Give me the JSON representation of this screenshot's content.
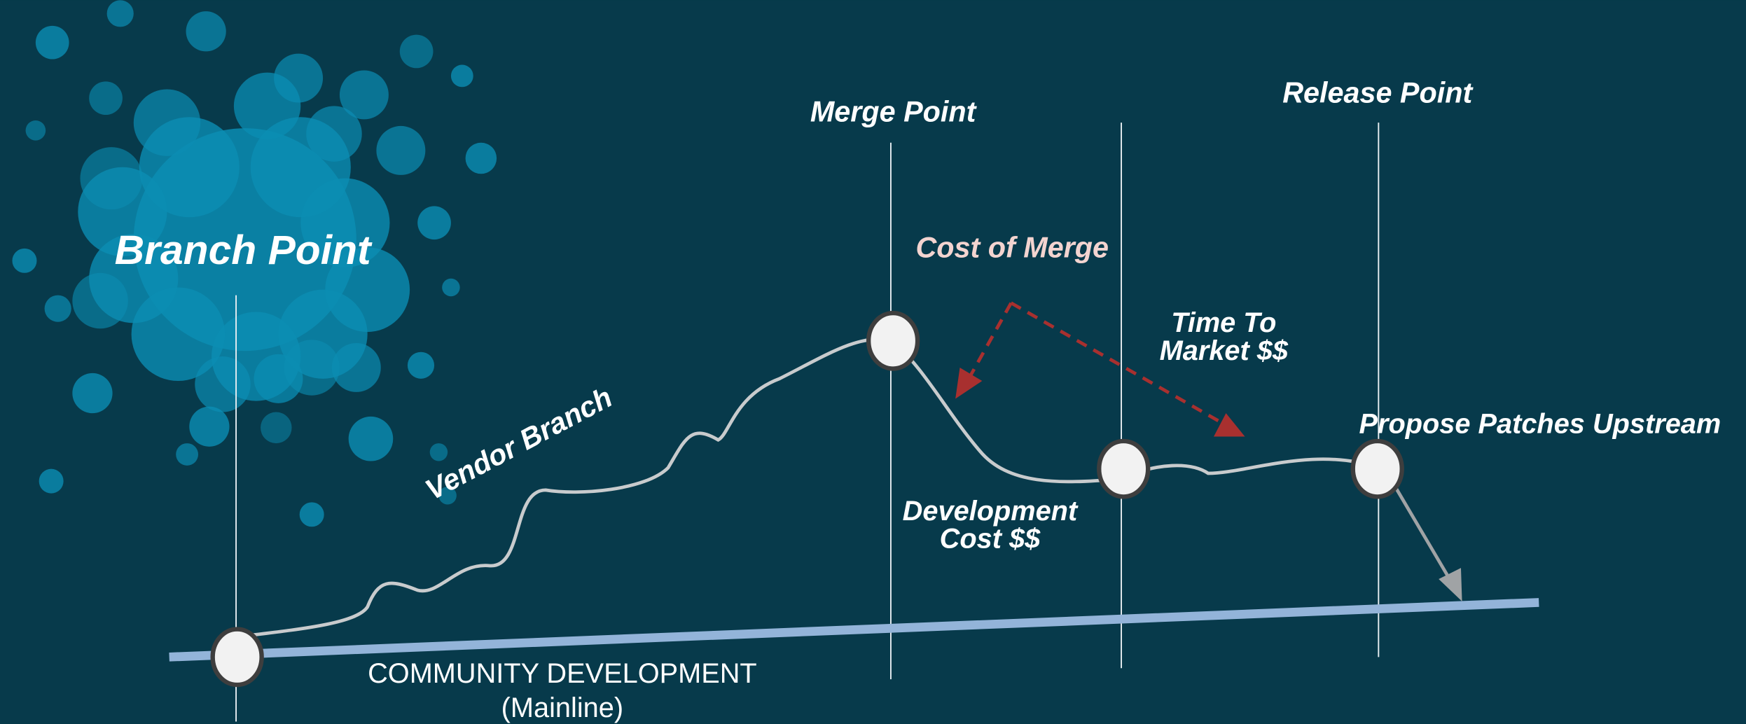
{
  "labels": {
    "branch_point": "Branch Point",
    "merge_point": "Merge Point",
    "release_point": "Release Point",
    "cost_of_merge": "Cost of Merge",
    "time_to_market": [
      "Time To",
      "Market $$"
    ],
    "vendor_branch": "Vendor Branch",
    "development_cost": [
      "Development",
      "Cost $$"
    ],
    "propose_patches": "Propose Patches Upstream",
    "community": [
      "COMMUNITY DEVELOPMENT",
      "(Mainline)"
    ]
  }
}
